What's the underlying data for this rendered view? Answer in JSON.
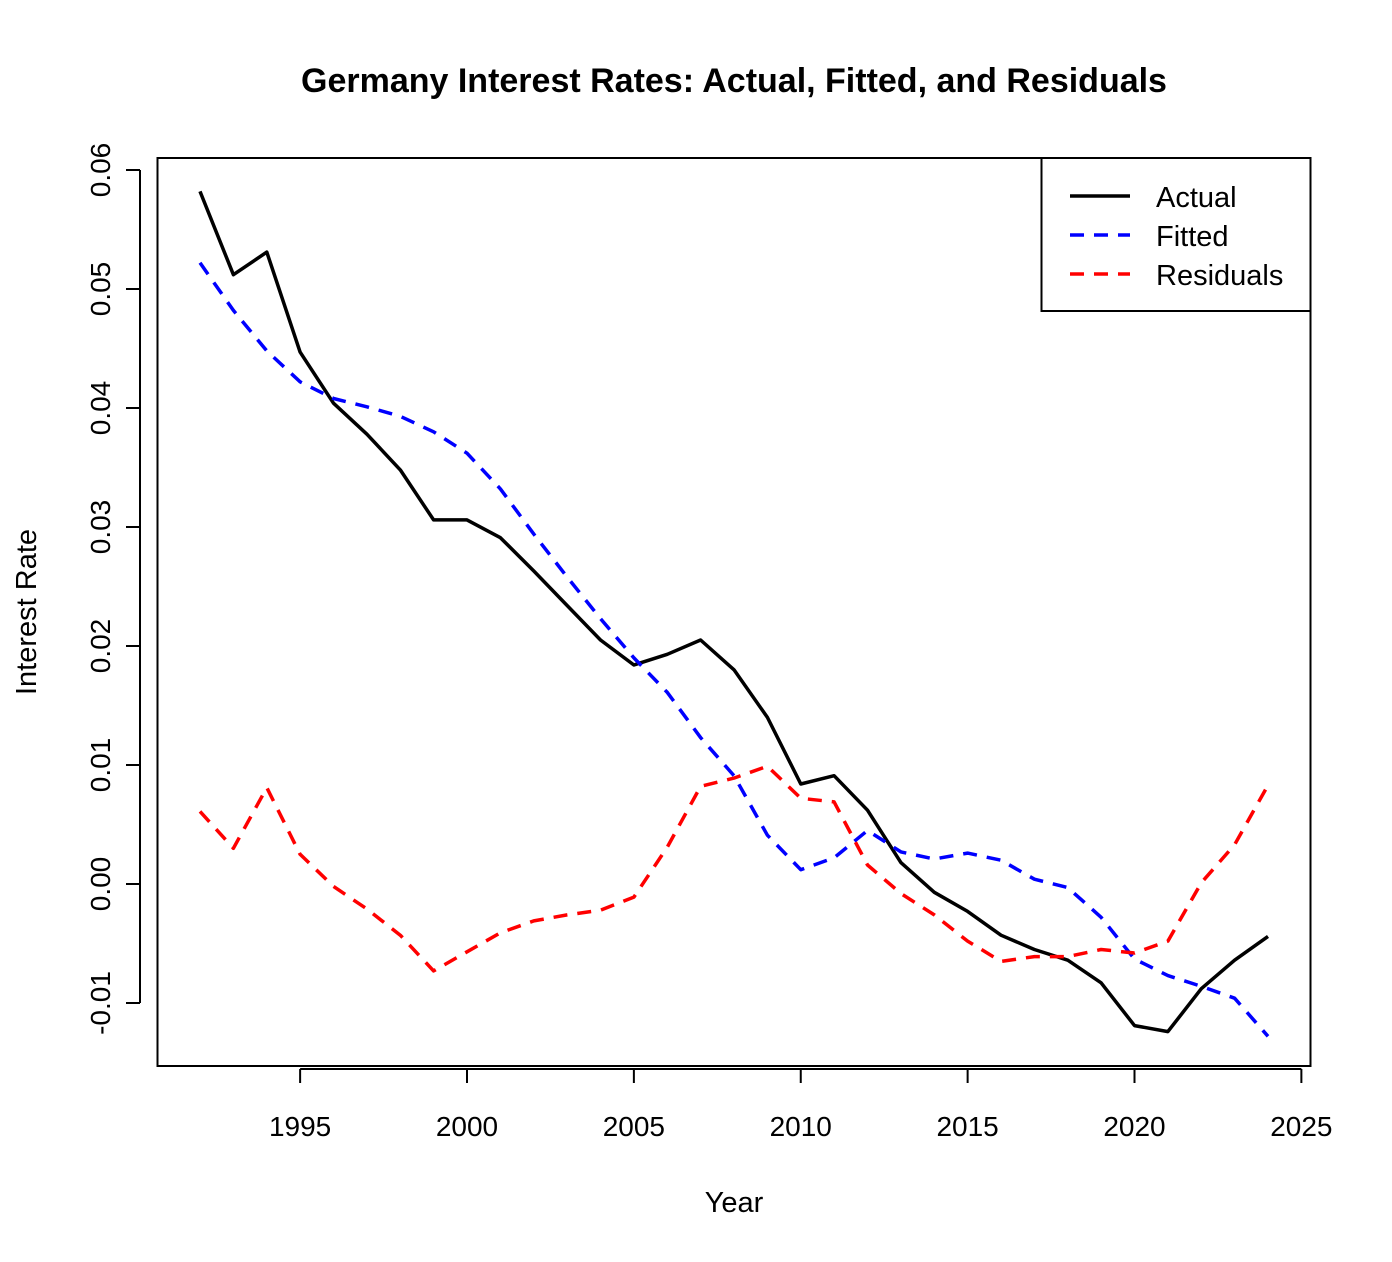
{
  "chart_data": {
    "type": "line",
    "title": "Germany Interest Rates: Actual, Fitted, and Residuals",
    "xlabel": "Year",
    "ylabel": "Interest Rate",
    "xlim": [
      1992,
      2024
    ],
    "ylim": [
      -0.013,
      0.061
    ],
    "x_ticks": [
      1995,
      2000,
      2005,
      2010,
      2015,
      2020,
      2025
    ],
    "y_ticks": [
      -0.01,
      0.0,
      0.01,
      0.02,
      0.03,
      0.04,
      0.05,
      0.06
    ],
    "y_tick_labels": [
      "-0.01",
      "0.00",
      "0.01",
      "0.02",
      "0.03",
      "0.04",
      "0.05",
      "0.06"
    ],
    "grid": false,
    "legend_position": "top-right",
    "x": [
      1992,
      1993,
      1994,
      1995,
      1996,
      1997,
      1998,
      1999,
      2000,
      2001,
      2002,
      2003,
      2004,
      2005,
      2006,
      2007,
      2008,
      2009,
      2010,
      2011,
      2012,
      2013,
      2014,
      2015,
      2016,
      2017,
      2018,
      2019,
      2020,
      2021,
      2022,
      2023,
      2024
    ],
    "series": [
      {
        "name": "Actual",
        "color": "#000000",
        "dash": "solid",
        "values": [
          0.0582,
          0.0512,
          0.0531,
          0.0447,
          0.0404,
          0.0378,
          0.0348,
          0.0306,
          0.0306,
          0.0291,
          0.0263,
          0.0234,
          0.0205,
          0.0184,
          0.0193,
          0.0205,
          0.018,
          0.014,
          0.0084,
          0.0091,
          0.0062,
          0.0018,
          -0.0007,
          -0.0023,
          -0.0043,
          -0.0055,
          -0.0064,
          -0.0083,
          -0.0119,
          -0.0124,
          -0.0088,
          -0.0064,
          -0.0044
        ]
      },
      {
        "name": "Fitted",
        "color": "#0000ff",
        "dash": "dashed",
        "values": [
          0.0522,
          0.0482,
          0.0448,
          0.0422,
          0.0408,
          0.0401,
          0.0393,
          0.038,
          0.0362,
          0.0332,
          0.0294,
          0.0258,
          0.0223,
          0.019,
          0.0161,
          0.0123,
          0.0091,
          0.0041,
          0.0012,
          0.0022,
          0.0045,
          0.0027,
          0.0021,
          0.0026,
          0.002,
          0.0004,
          -0.0003,
          -0.0028,
          -0.0063,
          -0.0077,
          -0.0086,
          -0.0096,
          -0.0128
        ]
      },
      {
        "name": "Residuals",
        "color": "#ff0000",
        "dash": "dashed",
        "values": [
          0.0061,
          0.003,
          0.0081,
          0.0025,
          -0.0002,
          -0.0021,
          -0.0043,
          -0.0073,
          -0.0057,
          -0.0041,
          -0.0031,
          -0.0026,
          -0.0022,
          -0.0011,
          0.0031,
          0.0082,
          0.0089,
          0.0099,
          0.0072,
          0.0069,
          0.0016,
          -0.0008,
          -0.0026,
          -0.0048,
          -0.0065,
          -0.0061,
          -0.0061,
          -0.0055,
          -0.0058,
          -0.0048,
          0.0001,
          0.0033,
          0.0083
        ]
      }
    ]
  }
}
